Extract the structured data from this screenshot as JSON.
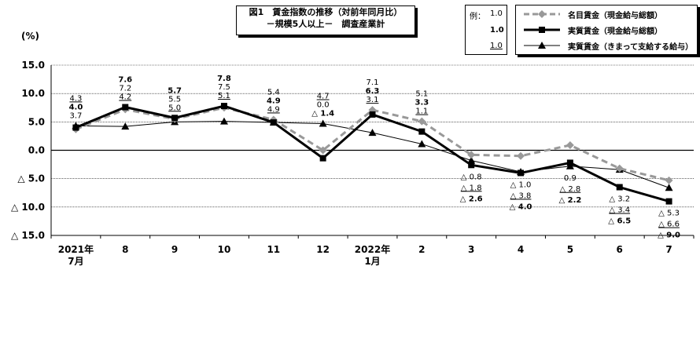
{
  "figure": {
    "title_line1": "図1　賃金指数の推移（対前年同月比）",
    "title_line2": "－規模5人以上－　調査産業計"
  },
  "unit_label": "(%)",
  "format_note": {
    "label": "例：",
    "examples": [
      "1.0",
      "1.0",
      "1.0"
    ]
  },
  "colors": {
    "nominal": "#999999",
    "real_total": "#000000",
    "real_regular": "#000000",
    "zero_line": "#000000",
    "grid": "#000000"
  },
  "chart_data": {
    "type": "line",
    "categories": [
      "2021年\n7月",
      "8",
      "9",
      "10",
      "11",
      "12",
      "2022年\n1月",
      "2",
      "3",
      "4",
      "5",
      "6",
      "7"
    ],
    "y_ticks": [
      "15.0",
      "10.0",
      "5.0",
      "0.0",
      "△ 5.0",
      "△ 10.0",
      "△ 15.0"
    ],
    "ylim": [
      -15,
      15
    ],
    "grid": "horizontal",
    "legend_position": "top-right",
    "series": [
      {
        "name": "名目賃金（現金給与総額）",
        "style": "dashed-diamond",
        "values": [
          3.7,
          7.2,
          5.5,
          7.5,
          5.4,
          0.0,
          7.1,
          5.1,
          -0.8,
          -1.0,
          0.9,
          -3.2,
          -5.3
        ],
        "labels": [
          "3.7",
          "7.2",
          "5.5",
          "7.5",
          "5.4",
          "0.0",
          "7.1",
          "5.1",
          "△ 0.8",
          "△ 1.0",
          "0.9",
          "△ 3.2",
          "△ 5.3"
        ]
      },
      {
        "name": "実質賃金（現金給与総額）",
        "style": "bold-square",
        "values": [
          4.0,
          7.6,
          5.7,
          7.8,
          4.9,
          -1.4,
          6.3,
          3.3,
          -2.6,
          -4.0,
          -2.2,
          -6.5,
          -9.0
        ],
        "labels": [
          "4.0",
          "7.6",
          "5.7",
          "7.8",
          "4.9",
          "△ 1.4",
          "6.3",
          "3.3",
          "△ 2.6",
          "△ 4.0",
          "△ 2.2",
          "△ 6.5",
          "△ 9.0"
        ]
      },
      {
        "name": "実質賃金（きまって支給する給与）",
        "style": "thin-triangle",
        "values": [
          4.3,
          4.2,
          5.0,
          5.1,
          4.9,
          4.7,
          3.1,
          1.1,
          -1.8,
          -3.8,
          -2.8,
          -3.4,
          -6.6
        ],
        "labels": [
          "4.3",
          "4.2",
          "5.0",
          "5.1",
          "4.9",
          "4.7",
          "3.1",
          "1.1",
          "△ 1.8",
          "△ 3.8",
          "△ 2.8",
          "△ 3.4",
          "△ 6.6"
        ]
      }
    ]
  }
}
